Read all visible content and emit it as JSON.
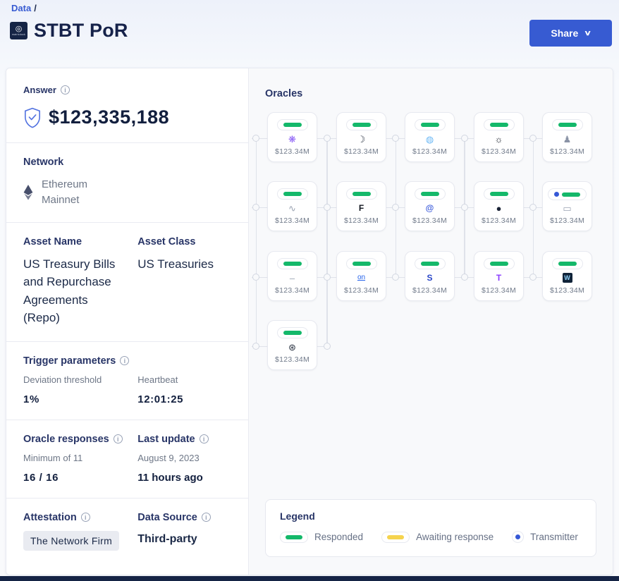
{
  "breadcrumb": {
    "link": "Data",
    "separator": "/"
  },
  "header": {
    "logo_label": "matrixdock",
    "logo_glyph": "◎",
    "title": "STBT PoR",
    "share_label": "Share"
  },
  "panel": {
    "answer": {
      "label": "Answer",
      "value": "$123,335,188"
    },
    "network": {
      "label": "Network",
      "value": "Ethereum Mainnet"
    },
    "asset_name": {
      "label": "Asset Name",
      "value": "US Treasury Bills and Repurchase Agreements (Repo)"
    },
    "asset_class": {
      "label": "Asset Class",
      "value": "US Treasuries"
    },
    "trigger": {
      "label": "Trigger parameters",
      "deviation_label": "Deviation threshold",
      "deviation_value": "1%",
      "heartbeat_label": "Heartbeat",
      "heartbeat_value": "12:01:25"
    },
    "responses": {
      "label": "Oracle responses",
      "min_label": "Minimum of 11",
      "value": "16 / 16"
    },
    "last_update": {
      "label": "Last update",
      "date": "August 9, 2023",
      "value": "11 hours ago"
    },
    "attestation": {
      "label": "Attestation",
      "value": "The Network Firm"
    },
    "data_source": {
      "label": "Data Source",
      "value": "Third-party"
    }
  },
  "oracles": {
    "title": "Oracles",
    "items": [
      {
        "value": "$123.34M",
        "status": "responded",
        "transmitter": false,
        "icon": {
          "glyph": "❋",
          "color": "#8a5cf6"
        }
      },
      {
        "value": "$123.34M",
        "status": "responded",
        "transmitter": false,
        "icon": {
          "glyph": "☽",
          "color": "#2a3342"
        }
      },
      {
        "value": "$123.34M",
        "status": "responded",
        "transmitter": false,
        "icon": {
          "glyph": "◍",
          "color": "#6cb9f5"
        }
      },
      {
        "value": "$123.34M",
        "status": "responded",
        "transmitter": false,
        "icon": {
          "glyph": "☼",
          "color": "#151b26"
        }
      },
      {
        "value": "$123.34M",
        "status": "responded",
        "transmitter": false,
        "icon": {
          "glyph": "♟",
          "color": "#8a93a6"
        }
      },
      {
        "value": "$123.34M",
        "status": "responded",
        "transmitter": false,
        "icon": {
          "glyph": "∿",
          "color": "#9aa3b2"
        }
      },
      {
        "value": "$123.34M",
        "status": "responded",
        "transmitter": false,
        "icon": {
          "glyph": "F",
          "color": "#10151f",
          "style": "bold"
        }
      },
      {
        "value": "$123.34M",
        "status": "responded",
        "transmitter": false,
        "icon": {
          "glyph": "@",
          "color": "#3b5bdb",
          "style": "bold"
        }
      },
      {
        "value": "$123.34M",
        "status": "responded",
        "transmitter": false,
        "icon": {
          "glyph": "●",
          "color": "#1b2437"
        }
      },
      {
        "value": "$123.34M",
        "status": "responded",
        "transmitter": true,
        "icon": {
          "glyph": "▭",
          "color": "#9aa3b2"
        }
      },
      {
        "value": "$123.34M",
        "status": "responded",
        "transmitter": false,
        "icon": {
          "glyph": "–",
          "color": "#9aa3b2"
        }
      },
      {
        "value": "$123.34M",
        "status": "responded",
        "transmitter": false,
        "icon": {
          "glyph": "on",
          "color": "#2563eb",
          "style": "underline"
        }
      },
      {
        "value": "$123.34M",
        "status": "responded",
        "transmitter": false,
        "icon": {
          "glyph": "S",
          "color": "#2946c8",
          "style": "bold"
        }
      },
      {
        "value": "$123.34M",
        "status": "responded",
        "transmitter": false,
        "icon": {
          "glyph": "T",
          "color": "#8b3dff",
          "style": "bold"
        }
      },
      {
        "value": "$123.34M",
        "status": "responded",
        "transmitter": false,
        "icon": {
          "glyph": "W",
          "color": "#8ed0f8",
          "style": "boxed",
          "box_bg": "#102338"
        }
      },
      {
        "value": "$123.34M",
        "status": "responded",
        "transmitter": false,
        "icon": {
          "glyph": "⊛",
          "color": "#2a3342"
        }
      }
    ]
  },
  "legend": {
    "title": "Legend",
    "responded": "Responded",
    "awaiting": "Awaiting response",
    "transmitter": "Transmitter"
  },
  "colors": {
    "green": "#14b86a",
    "yellow": "#f5d34e",
    "blue": "#3558d6",
    "accent": "#375bd2"
  }
}
